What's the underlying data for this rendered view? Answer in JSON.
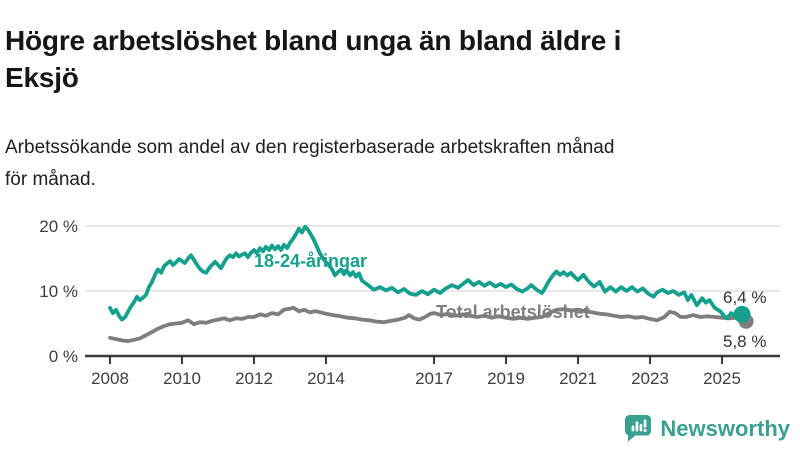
{
  "header": {
    "title": "Högre arbetslöshet bland unga än bland äldre i Eksjö",
    "title_lines": [
      "Högre arbetslöshet bland unga än bland äldre i",
      "Eksjö"
    ],
    "subtitle": "Arbetssökande som andel av den registerbaserade arbetskraften månad för månad.",
    "subtitle_lines": [
      "Arbetssökande som andel av den registerbaserade arbetskraften månad",
      "för månad."
    ]
  },
  "footer": {
    "brand": "Newsworthy",
    "brand_color": "#3aa092",
    "logo_icon": "newsworthy-speech-bubble-barchart-icon"
  },
  "colors": {
    "young_series": "#14a08d",
    "total_series": "#7e7e7e",
    "gridline": "#d9d9d9",
    "axis": "#3a3a3a",
    "axis_text": "#3f3f3f",
    "end_label_text": "#333333"
  },
  "chart_data": {
    "type": "line",
    "title": "Högre arbetslöshet bland unga än bland äldre i Eksjö",
    "subtitle": "Arbetssökande som andel av den registerbaserade arbetskraften månad för månad.",
    "unit": "%",
    "grid": true,
    "xlim": [
      2007.3,
      2026.6
    ],
    "ylim": [
      0,
      21.7
    ],
    "x_tick_years": [
      2008,
      2010,
      2012,
      2014,
      2017,
      2019,
      2021,
      2023,
      2025
    ],
    "x_tick_labels": [
      "2008",
      "2010",
      "2012",
      "2014",
      "2017",
      "2019",
      "2021",
      "2023",
      "2025"
    ],
    "y_ticks": [
      {
        "value": 0,
        "label": "0 %"
      },
      {
        "value": 10,
        "label": "10 %"
      },
      {
        "value": 20,
        "label": "20 %"
      }
    ],
    "series": [
      {
        "name": "18-24-åringar",
        "color": "#14a08d",
        "end_label": "6,4 %",
        "end_value": 6.4,
        "points": [
          [
            2008.0,
            7.4
          ],
          [
            2008.08,
            6.6
          ],
          [
            2008.17,
            7.1
          ],
          [
            2008.25,
            6.2
          ],
          [
            2008.33,
            5.6
          ],
          [
            2008.42,
            6.0
          ],
          [
            2008.5,
            6.8
          ],
          [
            2008.58,
            7.6
          ],
          [
            2008.67,
            8.3
          ],
          [
            2008.75,
            9.1
          ],
          [
            2008.83,
            8.6
          ],
          [
            2008.92,
            9.0
          ],
          [
            2009.0,
            9.4
          ],
          [
            2009.08,
            10.6
          ],
          [
            2009.17,
            11.4
          ],
          [
            2009.25,
            12.5
          ],
          [
            2009.33,
            13.3
          ],
          [
            2009.42,
            12.8
          ],
          [
            2009.5,
            13.8
          ],
          [
            2009.58,
            14.2
          ],
          [
            2009.67,
            14.6
          ],
          [
            2009.75,
            14.0
          ],
          [
            2009.83,
            14.4
          ],
          [
            2009.92,
            14.9
          ],
          [
            2010.0,
            14.6
          ],
          [
            2010.08,
            14.3
          ],
          [
            2010.17,
            15.0
          ],
          [
            2010.25,
            15.5
          ],
          [
            2010.33,
            14.8
          ],
          [
            2010.42,
            14.0
          ],
          [
            2010.5,
            13.4
          ],
          [
            2010.58,
            13.0
          ],
          [
            2010.67,
            12.8
          ],
          [
            2010.75,
            13.5
          ],
          [
            2010.83,
            14.0
          ],
          [
            2010.92,
            14.5
          ],
          [
            2011.0,
            14.0
          ],
          [
            2011.08,
            13.5
          ],
          [
            2011.17,
            14.4
          ],
          [
            2011.25,
            15.1
          ],
          [
            2011.33,
            15.5
          ],
          [
            2011.42,
            15.2
          ],
          [
            2011.5,
            15.8
          ],
          [
            2011.58,
            15.3
          ],
          [
            2011.67,
            15.6
          ],
          [
            2011.75,
            15.8
          ],
          [
            2011.83,
            15.2
          ],
          [
            2011.92,
            15.9
          ],
          [
            2012.0,
            16.3
          ],
          [
            2012.08,
            15.8
          ],
          [
            2012.17,
            16.6
          ],
          [
            2012.25,
            16.1
          ],
          [
            2012.33,
            16.8
          ],
          [
            2012.42,
            16.3
          ],
          [
            2012.5,
            17.0
          ],
          [
            2012.58,
            16.4
          ],
          [
            2012.67,
            16.9
          ],
          [
            2012.75,
            16.3
          ],
          [
            2012.83,
            17.1
          ],
          [
            2012.92,
            16.6
          ],
          [
            2013.0,
            17.4
          ],
          [
            2013.08,
            18.0
          ],
          [
            2013.17,
            18.8
          ],
          [
            2013.25,
            19.6
          ],
          [
            2013.33,
            19.0
          ],
          [
            2013.42,
            19.9
          ],
          [
            2013.5,
            19.4
          ],
          [
            2013.58,
            18.7
          ],
          [
            2013.67,
            17.8
          ],
          [
            2013.75,
            16.8
          ],
          [
            2013.83,
            15.8
          ],
          [
            2013.92,
            15.0
          ],
          [
            2014.0,
            14.4
          ],
          [
            2014.08,
            14.0
          ],
          [
            2014.17,
            13.3
          ],
          [
            2014.25,
            12.4
          ],
          [
            2014.33,
            12.9
          ],
          [
            2014.42,
            13.3
          ],
          [
            2014.5,
            12.6
          ],
          [
            2014.58,
            13.1
          ],
          [
            2014.67,
            12.4
          ],
          [
            2014.75,
            12.9
          ],
          [
            2014.83,
            12.2
          ],
          [
            2014.92,
            12.7
          ],
          [
            2015.0,
            11.6
          ],
          [
            2015.17,
            10.9
          ],
          [
            2015.33,
            10.2
          ],
          [
            2015.5,
            10.6
          ],
          [
            2015.67,
            10.1
          ],
          [
            2015.83,
            10.5
          ],
          [
            2016.0,
            9.8
          ],
          [
            2016.17,
            10.3
          ],
          [
            2016.33,
            9.6
          ],
          [
            2016.5,
            9.4
          ],
          [
            2016.67,
            10.0
          ],
          [
            2016.83,
            9.5
          ],
          [
            2017.0,
            10.2
          ],
          [
            2017.17,
            9.7
          ],
          [
            2017.33,
            10.4
          ],
          [
            2017.5,
            10.9
          ],
          [
            2017.67,
            10.5
          ],
          [
            2017.83,
            11.2
          ],
          [
            2017.95,
            11.7
          ],
          [
            2018.1,
            10.9
          ],
          [
            2018.25,
            11.4
          ],
          [
            2018.4,
            10.8
          ],
          [
            2018.55,
            11.3
          ],
          [
            2018.7,
            10.7
          ],
          [
            2018.85,
            11.1
          ],
          [
            2019.0,
            10.6
          ],
          [
            2019.15,
            11.0
          ],
          [
            2019.3,
            10.3
          ],
          [
            2019.45,
            9.9
          ],
          [
            2019.6,
            10.4
          ],
          [
            2019.7,
            10.9
          ],
          [
            2019.85,
            10.2
          ],
          [
            2020.0,
            9.7
          ],
          [
            2020.1,
            10.6
          ],
          [
            2020.2,
            11.6
          ],
          [
            2020.3,
            12.4
          ],
          [
            2020.4,
            13.0
          ],
          [
            2020.5,
            12.5
          ],
          [
            2020.6,
            12.9
          ],
          [
            2020.7,
            12.4
          ],
          [
            2020.8,
            12.8
          ],
          [
            2020.9,
            12.2
          ],
          [
            2021.0,
            11.7
          ],
          [
            2021.15,
            12.5
          ],
          [
            2021.3,
            11.4
          ],
          [
            2021.45,
            10.7
          ],
          [
            2021.6,
            11.4
          ],
          [
            2021.75,
            9.9
          ],
          [
            2021.9,
            10.6
          ],
          [
            2022.05,
            9.9
          ],
          [
            2022.2,
            10.6
          ],
          [
            2022.35,
            10.0
          ],
          [
            2022.5,
            10.6
          ],
          [
            2022.65,
            9.9
          ],
          [
            2022.8,
            10.4
          ],
          [
            2022.95,
            9.6
          ],
          [
            2023.1,
            9.1
          ],
          [
            2023.2,
            9.8
          ],
          [
            2023.35,
            10.2
          ],
          [
            2023.5,
            9.7
          ],
          [
            2023.65,
            10.0
          ],
          [
            2023.8,
            9.4
          ],
          [
            2023.95,
            9.8
          ],
          [
            2024.05,
            8.6
          ],
          [
            2024.15,
            9.4
          ],
          [
            2024.3,
            7.8
          ],
          [
            2024.45,
            8.9
          ],
          [
            2024.55,
            8.2
          ],
          [
            2024.65,
            8.6
          ],
          [
            2024.8,
            7.4
          ],
          [
            2024.95,
            6.9
          ],
          [
            2025.05,
            6.2
          ],
          [
            2025.15,
            5.8
          ],
          [
            2025.25,
            6.6
          ],
          [
            2025.4,
            6.1
          ],
          [
            2025.5,
            6.3
          ],
          [
            2025.6,
            6.4
          ]
        ]
      },
      {
        "name": "Total arbetslöshet",
        "color": "#7e7e7e",
        "end_label": "5,8 %",
        "end_value": 5.8,
        "points": [
          [
            2008.0,
            2.8
          ],
          [
            2008.17,
            2.6
          ],
          [
            2008.33,
            2.4
          ],
          [
            2008.5,
            2.3
          ],
          [
            2008.67,
            2.5
          ],
          [
            2008.83,
            2.7
          ],
          [
            2009.0,
            3.2
          ],
          [
            2009.17,
            3.7
          ],
          [
            2009.33,
            4.2
          ],
          [
            2009.5,
            4.6
          ],
          [
            2009.67,
            4.9
          ],
          [
            2009.83,
            5.0
          ],
          [
            2010.0,
            5.1
          ],
          [
            2010.17,
            5.5
          ],
          [
            2010.33,
            4.9
          ],
          [
            2010.5,
            5.2
          ],
          [
            2010.67,
            5.1
          ],
          [
            2010.83,
            5.4
          ],
          [
            2011.0,
            5.6
          ],
          [
            2011.17,
            5.8
          ],
          [
            2011.33,
            5.5
          ],
          [
            2011.5,
            5.8
          ],
          [
            2011.67,
            5.7
          ],
          [
            2011.83,
            6.0
          ],
          [
            2012.0,
            6.0
          ],
          [
            2012.17,
            6.4
          ],
          [
            2012.33,
            6.2
          ],
          [
            2012.5,
            6.6
          ],
          [
            2012.67,
            6.4
          ],
          [
            2012.83,
            7.1
          ],
          [
            2013.0,
            7.3
          ],
          [
            2013.1,
            7.4
          ],
          [
            2013.25,
            6.9
          ],
          [
            2013.4,
            7.1
          ],
          [
            2013.55,
            6.7
          ],
          [
            2013.7,
            6.9
          ],
          [
            2013.85,
            6.7
          ],
          [
            2014.0,
            6.5
          ],
          [
            2014.2,
            6.3
          ],
          [
            2014.4,
            6.1
          ],
          [
            2014.6,
            5.9
          ],
          [
            2014.8,
            5.8
          ],
          [
            2015.0,
            5.6
          ],
          [
            2015.2,
            5.5
          ],
          [
            2015.4,
            5.3
          ],
          [
            2015.6,
            5.2
          ],
          [
            2015.8,
            5.4
          ],
          [
            2016.0,
            5.6
          ],
          [
            2016.2,
            5.9
          ],
          [
            2016.3,
            6.3
          ],
          [
            2016.45,
            5.8
          ],
          [
            2016.6,
            5.6
          ],
          [
            2016.75,
            6.0
          ],
          [
            2016.9,
            6.5
          ],
          [
            2017.0,
            6.6
          ],
          [
            2017.2,
            6.3
          ],
          [
            2017.4,
            6.5
          ],
          [
            2017.6,
            6.2
          ],
          [
            2017.8,
            6.4
          ],
          [
            2018.0,
            6.2
          ],
          [
            2018.2,
            6.0
          ],
          [
            2018.4,
            6.2
          ],
          [
            2018.6,
            5.9
          ],
          [
            2018.8,
            6.1
          ],
          [
            2019.0,
            5.9
          ],
          [
            2019.2,
            5.7
          ],
          [
            2019.4,
            5.9
          ],
          [
            2019.6,
            5.7
          ],
          [
            2019.8,
            5.9
          ],
          [
            2020.0,
            6.0
          ],
          [
            2020.2,
            6.6
          ],
          [
            2020.4,
            7.1
          ],
          [
            2020.6,
            7.2
          ],
          [
            2020.8,
            7.0
          ],
          [
            2021.0,
            7.1
          ],
          [
            2021.2,
            6.9
          ],
          [
            2021.4,
            6.7
          ],
          [
            2021.6,
            6.5
          ],
          [
            2021.8,
            6.4
          ],
          [
            2022.0,
            6.2
          ],
          [
            2022.2,
            6.0
          ],
          [
            2022.4,
            6.1
          ],
          [
            2022.6,
            5.9
          ],
          [
            2022.8,
            6.0
          ],
          [
            2023.0,
            5.7
          ],
          [
            2023.2,
            5.5
          ],
          [
            2023.4,
            6.0
          ],
          [
            2023.55,
            6.8
          ],
          [
            2023.7,
            6.6
          ],
          [
            2023.85,
            6.0
          ],
          [
            2024.0,
            6.0
          ],
          [
            2024.2,
            6.3
          ],
          [
            2024.4,
            6.0
          ],
          [
            2024.6,
            6.1
          ],
          [
            2024.8,
            6.0
          ],
          [
            2025.0,
            5.9
          ],
          [
            2025.2,
            5.8
          ],
          [
            2025.4,
            5.9
          ],
          [
            2025.6,
            5.8
          ]
        ]
      }
    ],
    "legend_position": "inline-labels"
  }
}
